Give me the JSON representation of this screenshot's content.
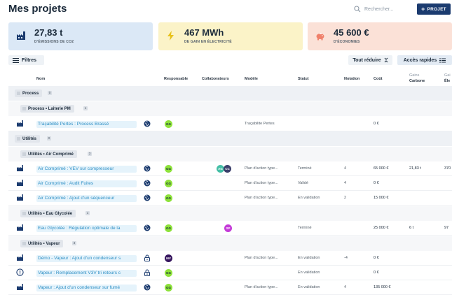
{
  "header": {
    "title": "Mes projets",
    "search_placeholder": "Rechercher...",
    "new_button": "PROJET"
  },
  "kpis": [
    {
      "value": "27,83 t",
      "label": "D'ÉMISSIONS DE CO2",
      "icon": "factory-icon"
    },
    {
      "value": "467 MWh",
      "label": "DE GAIN EN ÉLECTRICITÉ",
      "icon": "lightning-icon"
    },
    {
      "value": "45 600 €",
      "label": "D'ÉCONOMIES",
      "icon": "piggy-bank-icon"
    }
  ],
  "toolbar": {
    "filters": "Filtres",
    "collapse_all": "Tout réduire",
    "quick_access": "Accès rapides"
  },
  "columns": {
    "name": "Nom",
    "owner": "Responsable",
    "collaborators": "Collaborateurs",
    "model": "Modèle",
    "status": "Statut",
    "rating": "Notation",
    "cost": "Coût",
    "carbon_top": "Gains",
    "carbon_bottom": "Carbone",
    "elec_top": "Gai",
    "elec_bottom": "Éle"
  },
  "groups": {
    "process": {
      "label": "Process",
      "count": "0"
    },
    "process_laiterie": {
      "label": "Process • Laiterie PM",
      "count": "1"
    },
    "utilites": {
      "label": "Utilités",
      "count": "0"
    },
    "utilites_air": {
      "label": "Utilités • Air Comprimé",
      "count": "3"
    },
    "utilites_glycolee": {
      "label": "Utilités • Eau Glycolée",
      "count": "1"
    },
    "utilites_vapeur": {
      "label": "Utilités • Vapeur",
      "count": "3"
    }
  },
  "rows": [
    {
      "name": "Traçabilité Pertes : Process Brassé",
      "owner": "GG",
      "collaborators": [],
      "model": "Traçabilite Pertes",
      "status": "",
      "rating": "",
      "cost": "0 €",
      "carbon": "",
      "elec": ""
    },
    {
      "name": "Air Comprimé : VEV sur compresseur",
      "owner": "GG",
      "collaborators": [
        "AG",
        "CC"
      ],
      "model": "Plan d'action type...",
      "status": "Terminé",
      "rating": "4",
      "cost": "65 000 €",
      "carbon": "21,83 t",
      "elec": "370"
    },
    {
      "name": "Air Comprimé : Audit Fuites",
      "owner": "GG",
      "collaborators": [],
      "model": "Plan d'action type...",
      "status": "Validé",
      "rating": "4",
      "cost": "0 €",
      "carbon": "",
      "elec": ""
    },
    {
      "name": "Air Comprimé : Ajout d'un séquenceur",
      "owner": "GG",
      "collaborators": [],
      "model": "Plan d'action type...",
      "status": "En validation",
      "rating": "2",
      "cost": "15 000 €",
      "carbon": "",
      "elec": ""
    },
    {
      "name": "Eau Glycolée : Régulation optimale de la",
      "owner": "GG",
      "collaborators": [
        "SP"
      ],
      "model": "",
      "status": "Terminé",
      "rating": "",
      "cost": "25 000 €",
      "carbon": "6 t",
      "elec": "97"
    },
    {
      "name": "Démo - Vapeur : Ajout d'un condenseur s",
      "owner": "MV",
      "collaborators": [],
      "model": "Plan d'action type...",
      "status": "En validation",
      "rating": "-4",
      "cost": "0 €",
      "carbon": "",
      "elec": ""
    },
    {
      "name": "Vapeur : Remplacement V3V tri retours c",
      "owner": "GG",
      "collaborators": [],
      "model": "",
      "status": "En validation",
      "rating": "",
      "cost": "0 €",
      "carbon": "",
      "elec": ""
    },
    {
      "name": "Vapeur : Ajout d'un condenseur sur fumé",
      "owner": "GG",
      "collaborators": [],
      "model": "Plan d'action type...",
      "status": "En validation",
      "rating": "4",
      "cost": "135 000 €",
      "carbon": "",
      "elec": ""
    }
  ],
  "colors": {
    "primary": "#1b3b6f",
    "kpi_blue": "#dbe8f6",
    "kpi_yellow": "#fbf3c8",
    "kpi_salmon": "#fbe1d7",
    "link": "#2d8fc5",
    "avatar_green": "#8de23a"
  }
}
